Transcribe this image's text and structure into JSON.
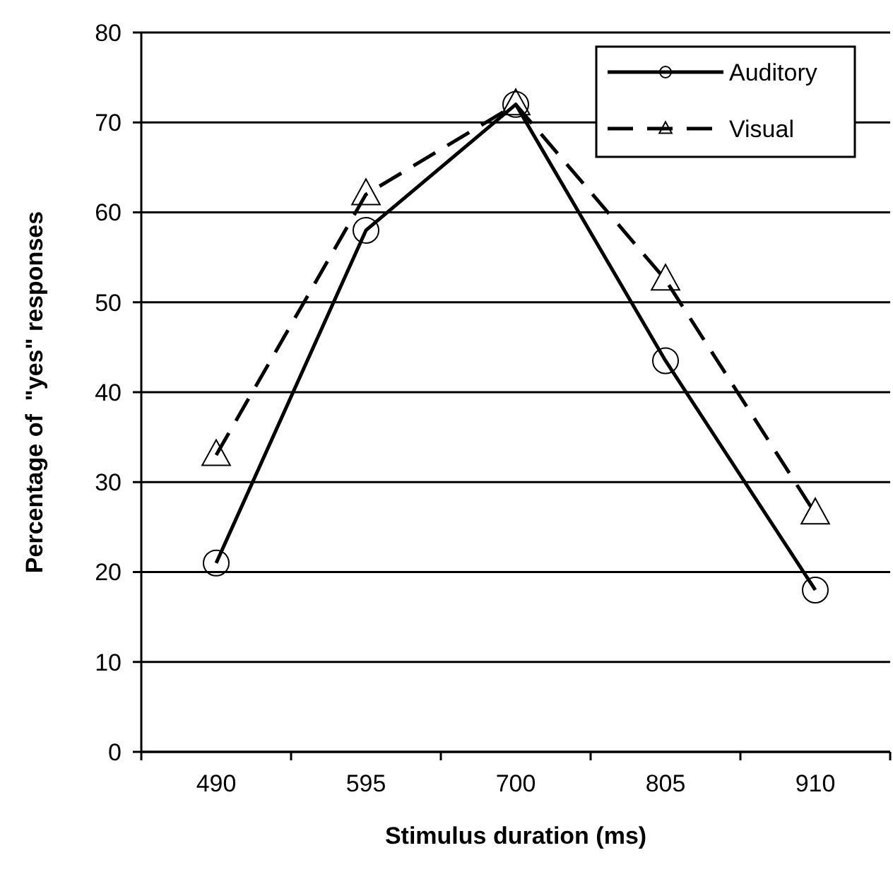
{
  "chart_data": {
    "type": "line",
    "xlabel": "Stimulus duration (ms)",
    "ylabel": "Percentage of  \"yes\" responses",
    "categories": [
      "490",
      "595",
      "700",
      "805",
      "910"
    ],
    "series": [
      {
        "name": "Auditory",
        "color": "#000000",
        "values": [
          21,
          58,
          72,
          43.5,
          18
        ],
        "marker": "circle",
        "line_style": "solid"
      },
      {
        "name": "Visual",
        "color": "#000000",
        "values": [
          33,
          62,
          72,
          52.5,
          26.5
        ],
        "marker": "triangle",
        "line_style": "dashed"
      }
    ],
    "ylim": [
      0,
      80
    ],
    "yticks": [
      0,
      10,
      20,
      30,
      40,
      50,
      60,
      70,
      80
    ],
    "grid": "y",
    "legend": "top right"
  }
}
